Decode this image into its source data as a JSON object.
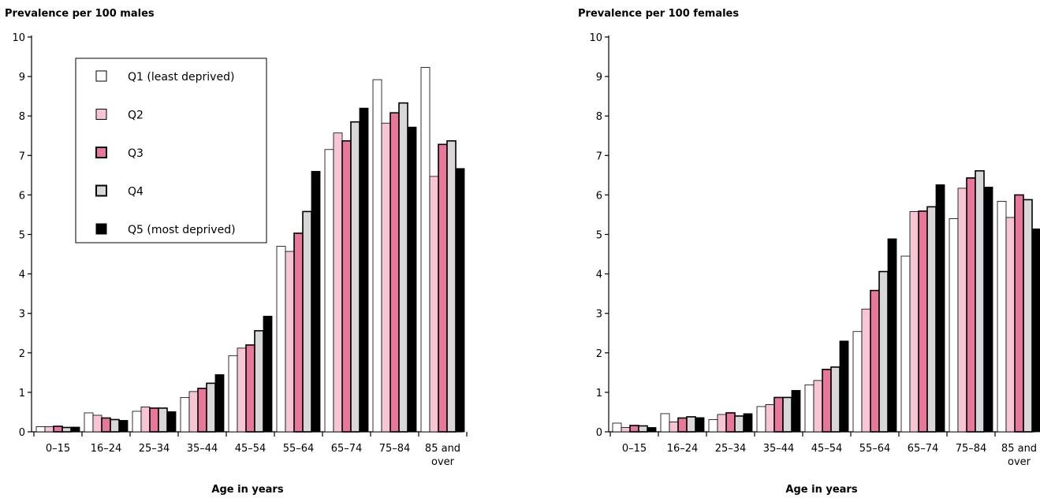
{
  "chart_data": [
    {
      "type": "bar",
      "title": "Prevalence per 100 males",
      "xlabel": "Age in years",
      "ylabel": "",
      "ylim": [
        0,
        10
      ],
      "yticks": [
        "0",
        "1",
        "2",
        "3",
        "4",
        "5",
        "6",
        "7",
        "8",
        "9",
        "10"
      ],
      "categories": [
        [
          "0–15"
        ],
        [
          "16–24"
        ],
        [
          "25–34"
        ],
        [
          "35–44"
        ],
        [
          "45–54"
        ],
        [
          "55–64"
        ],
        [
          "65–74"
        ],
        [
          "75–84"
        ],
        [
          "85 and",
          "over"
        ]
      ],
      "legend": "top-left",
      "series": [
        {
          "name": "Q1 (least deprived)",
          "color": "#ffffff",
          "values": [
            0.13,
            0.48,
            0.52,
            0.87,
            1.93,
            4.7,
            7.15,
            8.92,
            9.23
          ]
        },
        {
          "name": "Q2",
          "color": "#f7c6d5",
          "values": [
            0.13,
            0.42,
            0.63,
            1.02,
            2.12,
            4.57,
            7.57,
            7.82,
            6.47
          ]
        },
        {
          "name": "Q3",
          "color": "#e8789a",
          "values": [
            0.14,
            0.35,
            0.6,
            1.1,
            2.2,
            5.03,
            7.37,
            8.08,
            7.28
          ]
        },
        {
          "name": "Q4",
          "color": "#d8d8d8",
          "values": [
            0.11,
            0.31,
            0.6,
            1.23,
            2.56,
            5.58,
            7.85,
            8.33,
            7.37
          ]
        },
        {
          "name": "Q5 (most deprived)",
          "color": "#000000",
          "values": [
            0.12,
            0.29,
            0.51,
            1.45,
            2.93,
            6.6,
            8.2,
            7.72,
            6.67
          ]
        }
      ]
    },
    {
      "type": "bar",
      "title": "Prevalence per 100 females",
      "xlabel": "Age in years",
      "ylabel": "",
      "ylim": [
        0,
        10
      ],
      "yticks": [
        "0",
        "1",
        "2",
        "3",
        "4",
        "5",
        "6",
        "7",
        "8",
        "9",
        "10"
      ],
      "categories": [
        [
          "0–15"
        ],
        [
          "16–24"
        ],
        [
          "25–34"
        ],
        [
          "35–44"
        ],
        [
          "45–54"
        ],
        [
          "55–64"
        ],
        [
          "65–74"
        ],
        [
          "75–84"
        ],
        [
          "85 and",
          "over"
        ]
      ],
      "series": [
        {
          "name": "Q1 (least deprived)",
          "color": "#ffffff",
          "values": [
            0.22,
            0.46,
            0.31,
            0.64,
            1.19,
            2.54,
            4.45,
            5.4,
            5.84
          ]
        },
        {
          "name": "Q2",
          "color": "#f7c6d5",
          "values": [
            0.11,
            0.25,
            0.44,
            0.69,
            1.3,
            3.11,
            5.58,
            6.17,
            5.43
          ]
        },
        {
          "name": "Q3",
          "color": "#e8789a",
          "values": [
            0.16,
            0.35,
            0.48,
            0.87,
            1.58,
            3.58,
            5.59,
            6.43,
            6.0
          ]
        },
        {
          "name": "Q4",
          "color": "#d8d8d8",
          "values": [
            0.15,
            0.38,
            0.4,
            0.87,
            1.64,
            4.06,
            5.7,
            6.61,
            5.88
          ]
        },
        {
          "name": "Q5 (most deprived)",
          "color": "#000000",
          "values": [
            0.11,
            0.36,
            0.46,
            1.05,
            2.3,
            4.89,
            6.26,
            6.2,
            5.14
          ]
        }
      ]
    }
  ]
}
